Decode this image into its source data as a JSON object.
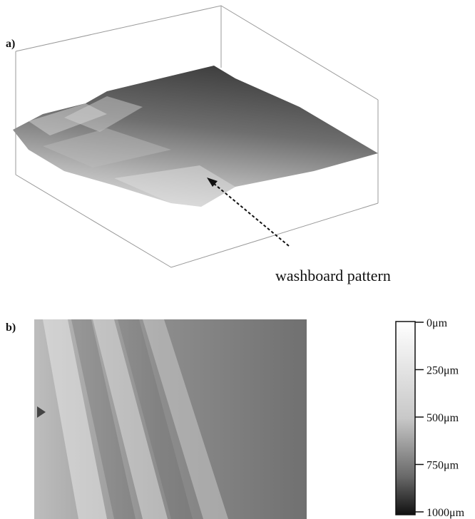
{
  "panel_a": {
    "label": "a)",
    "annotation": "washboard pattern"
  },
  "panel_b": {
    "label": "b)",
    "colorbar": {
      "tick_labels": [
        "0μm",
        "250μm",
        "500μm",
        "750μm",
        "1000μm"
      ]
    }
  }
}
